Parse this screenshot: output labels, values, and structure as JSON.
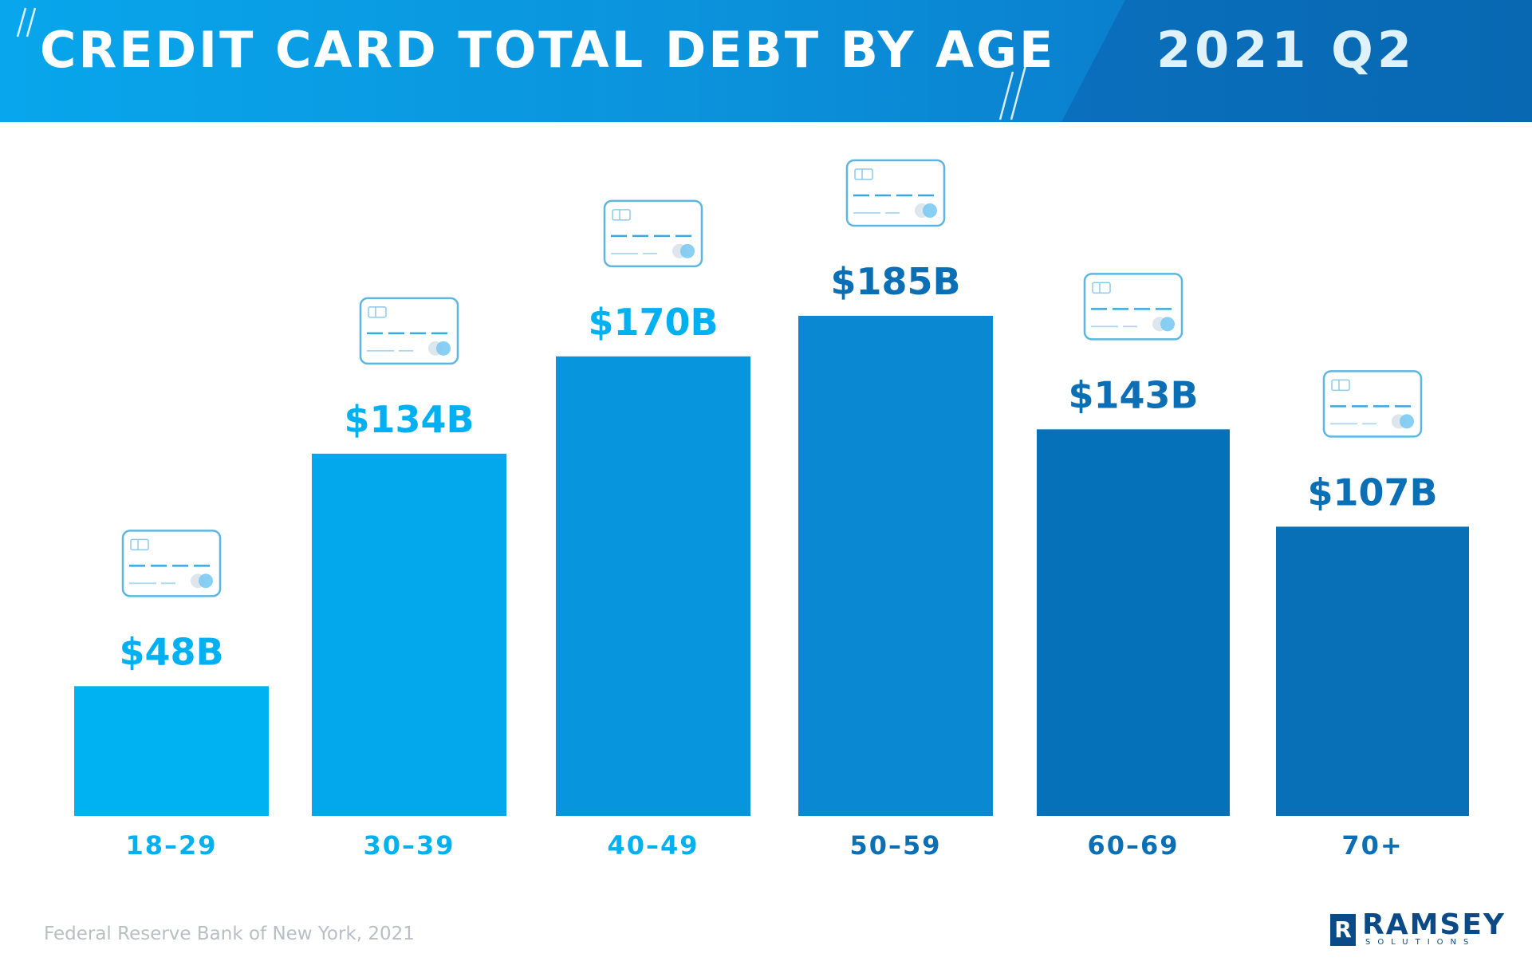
{
  "header": {
    "title": "CREDIT CARD TOTAL DEBT BY AGE",
    "period": "2021 Q2"
  },
  "colors": {
    "label_light": "#00b0f0",
    "label_dark": "#0a6fb5",
    "bars": [
      "#00b2f2",
      "#03a7eb",
      "#0795dd",
      "#0a88d1",
      "#0471b8",
      "#0770b7"
    ]
  },
  "chart_data": {
    "type": "bar",
    "title": "CREDIT CARD TOTAL DEBT BY AGE",
    "categories": [
      "18–29",
      "30–39",
      "40–49",
      "50–59",
      "60–69",
      "70+"
    ],
    "values": [
      48,
      134,
      170,
      185,
      143,
      107
    ],
    "value_labels": [
      "$48B",
      "$134B",
      "$170B",
      "$185B",
      "$143B",
      "$107B"
    ],
    "xlabel": "",
    "ylabel": "",
    "ylim": [
      0,
      185
    ],
    "grid": false,
    "icon": "credit-card-icon"
  },
  "footer": {
    "source": "Federal Reserve Bank of New York, 2021",
    "logo_name": "RAMSEY",
    "logo_sub": "SOLUTIONS",
    "logo_mark": "R"
  }
}
